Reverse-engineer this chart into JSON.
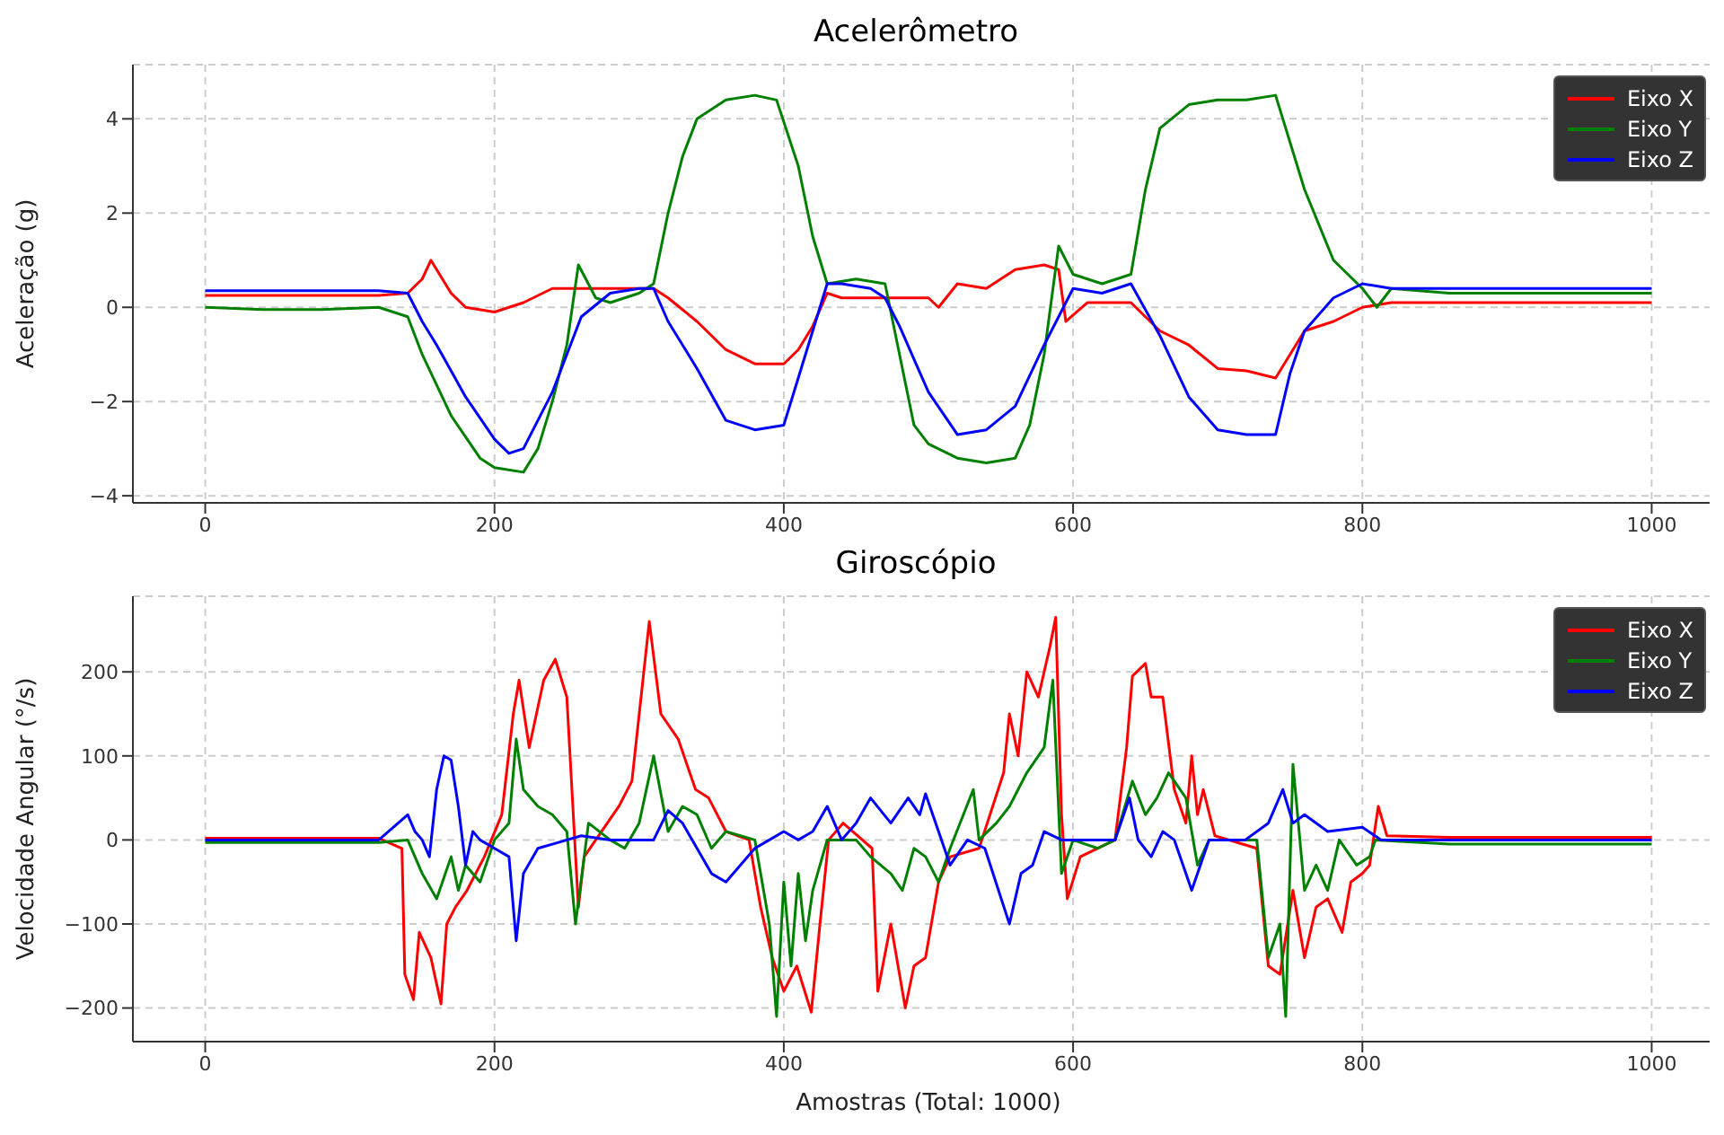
{
  "chart_data": [
    {
      "type": "line",
      "title": "Acelerômetro",
      "ylabel": "Aceleração (g)",
      "xlim": [
        -50,
        1050
      ],
      "xticks": [
        0,
        200,
        400,
        600,
        800,
        1000
      ],
      "ylim": [
        -4.15,
        5.15
      ],
      "yticks": [
        -4,
        -2,
        0,
        2,
        4
      ],
      "grid": true,
      "legend": "top right",
      "series": [
        {
          "name": "Eixo X",
          "color": "#ff0000",
          "x": [
            0,
            40,
            80,
            120,
            140,
            150,
            156,
            170,
            180,
            200,
            220,
            240,
            260,
            280,
            300,
            310,
            320,
            340,
            360,
            380,
            400,
            410,
            420,
            430,
            440,
            460,
            480,
            500,
            507,
            520,
            540,
            560,
            580,
            590,
            595,
            610,
            640,
            660,
            680,
            700,
            720,
            740,
            750,
            760,
            780,
            800,
            820,
            860,
            900,
            950,
            1000
          ],
          "values": [
            0.25,
            0.25,
            0.25,
            0.25,
            0.3,
            0.6,
            1.0,
            0.3,
            0.0,
            -0.1,
            0.1,
            0.4,
            0.4,
            0.4,
            0.4,
            0.4,
            0.2,
            -0.3,
            -0.9,
            -1.2,
            -1.2,
            -0.9,
            -0.4,
            0.3,
            0.2,
            0.2,
            0.2,
            0.2,
            0.0,
            0.5,
            0.4,
            0.8,
            0.9,
            0.8,
            -0.3,
            0.1,
            0.1,
            -0.5,
            -0.8,
            -1.3,
            -1.35,
            -1.5,
            -1.0,
            -0.5,
            -0.3,
            0.0,
            0.1,
            0.1,
            0.1,
            0.1,
            0.1
          ]
        },
        {
          "name": "Eixo Y",
          "color": "#008000",
          "x": [
            0,
            40,
            80,
            120,
            140,
            150,
            170,
            190,
            200,
            220,
            230,
            240,
            250,
            258,
            270,
            280,
            300,
            310,
            320,
            330,
            340,
            360,
            380,
            395,
            410,
            420,
            430,
            450,
            470,
            480,
            490,
            500,
            520,
            540,
            560,
            570,
            580,
            590,
            600,
            620,
            640,
            650,
            660,
            680,
            700,
            720,
            740,
            760,
            780,
            800,
            810,
            820,
            860,
            900,
            950,
            1000
          ],
          "values": [
            0.0,
            -0.05,
            -0.05,
            0.0,
            -0.2,
            -1.0,
            -2.3,
            -3.2,
            -3.4,
            -3.5,
            -3.0,
            -2.0,
            -0.8,
            0.9,
            0.2,
            0.1,
            0.3,
            0.5,
            2.0,
            3.2,
            4.0,
            4.4,
            4.5,
            4.4,
            3.0,
            1.5,
            0.5,
            0.6,
            0.5,
            -1.0,
            -2.5,
            -2.9,
            -3.2,
            -3.3,
            -3.2,
            -2.5,
            -1.0,
            1.3,
            0.7,
            0.5,
            0.7,
            2.5,
            3.8,
            4.3,
            4.4,
            4.4,
            4.5,
            2.5,
            1.0,
            0.4,
            0.0,
            0.4,
            0.3,
            0.3,
            0.3,
            0.3
          ]
        },
        {
          "name": "Eixo Z",
          "color": "#0000ff",
          "x": [
            0,
            40,
            80,
            120,
            140,
            150,
            160,
            180,
            200,
            210,
            220,
            240,
            260,
            280,
            300,
            310,
            320,
            340,
            360,
            380,
            400,
            410,
            420,
            430,
            440,
            460,
            470,
            480,
            500,
            520,
            540,
            560,
            580,
            600,
            620,
            640,
            660,
            680,
            700,
            720,
            740,
            750,
            760,
            780,
            800,
            820,
            860,
            900,
            950,
            1000
          ],
          "values": [
            0.35,
            0.35,
            0.35,
            0.35,
            0.3,
            -0.3,
            -0.8,
            -1.9,
            -2.8,
            -3.1,
            -3.0,
            -1.8,
            -0.2,
            0.3,
            0.4,
            0.4,
            -0.3,
            -1.3,
            -2.4,
            -2.6,
            -2.5,
            -1.5,
            -0.5,
            0.5,
            0.5,
            0.4,
            0.2,
            -0.4,
            -1.8,
            -2.7,
            -2.6,
            -2.1,
            -0.8,
            0.4,
            0.3,
            0.5,
            -0.6,
            -1.9,
            -2.6,
            -2.7,
            -2.7,
            -1.4,
            -0.5,
            0.2,
            0.5,
            0.4,
            0.4,
            0.4,
            0.4,
            0.4
          ]
        }
      ]
    },
    {
      "type": "line",
      "title": "Giroscópio",
      "xlabel": "Amostras (Total: 1000)",
      "ylabel": "Velocidade Angular (°/s)",
      "xlim": [
        -50,
        1050
      ],
      "xticks": [
        0,
        200,
        400,
        600,
        800,
        1000
      ],
      "ylim": [
        -240,
        290
      ],
      "yticks": [
        -200,
        -100,
        0,
        100,
        200
      ],
      "grid": true,
      "legend": "top right",
      "series": [
        {
          "name": "Eixo X",
          "color": "#ff0000",
          "x": [
            0,
            40,
            80,
            120,
            136,
            138,
            144,
            148,
            156,
            163,
            167,
            173,
            181,
            193,
            205,
            213,
            217,
            224,
            234,
            242,
            250,
            258,
            262,
            270,
            286,
            295,
            307,
            315,
            327,
            339,
            348,
            360,
            376,
            384,
            392,
            400,
            409,
            419,
            425,
            431,
            441,
            461,
            465,
            474,
            484,
            490,
            498,
            507,
            515,
            535,
            552,
            556,
            562,
            568,
            576,
            584,
            588,
            592,
            596,
            605,
            629,
            637,
            641,
            650,
            654,
            662,
            670,
            678,
            682,
            686,
            690,
            698,
            727,
            735,
            743,
            752,
            760,
            768,
            776,
            786,
            792,
            800,
            805,
            811,
            817,
            860,
            900,
            950,
            1000
          ],
          "values": [
            2,
            2,
            2,
            2,
            -10,
            -160,
            -190,
            -110,
            -140,
            -195,
            -100,
            -80,
            -60,
            -20,
            30,
            150,
            190,
            110,
            190,
            215,
            170,
            -80,
            -20,
            0,
            40,
            70,
            260,
            150,
            120,
            60,
            50,
            10,
            0,
            -80,
            -140,
            -180,
            -150,
            -205,
            -100,
            0,
            20,
            -10,
            -180,
            -100,
            -200,
            -150,
            -140,
            -50,
            -20,
            -10,
            80,
            150,
            100,
            200,
            170,
            230,
            265,
            30,
            -70,
            -20,
            0,
            110,
            195,
            210,
            170,
            170,
            60,
            20,
            100,
            30,
            60,
            5,
            -10,
            -150,
            -160,
            -60,
            -140,
            -80,
            -70,
            -110,
            -50,
            -40,
            -30,
            40,
            5,
            3,
            3,
            3,
            3
          ]
        },
        {
          "name": "Eixo Y",
          "color": "#008000",
          "x": [
            0,
            40,
            80,
            120,
            140,
            150,
            160,
            170,
            175,
            180,
            190,
            200,
            210,
            215,
            220,
            230,
            240,
            250,
            256,
            265,
            280,
            290,
            300,
            310,
            320,
            330,
            340,
            350,
            360,
            380,
            390,
            395,
            400,
            405,
            410,
            415,
            420,
            430,
            450,
            460,
            474,
            482,
            490,
            498,
            507,
            515,
            531,
            535,
            547,
            556,
            568,
            580,
            586,
            592,
            600,
            617,
            629,
            641,
            650,
            658,
            666,
            678,
            686,
            694,
            727,
            735,
            743,
            747,
            752,
            760,
            768,
            776,
            784,
            796,
            805,
            809,
            860,
            900,
            950,
            1000
          ],
          "values": [
            -3,
            -3,
            -3,
            -3,
            0,
            -40,
            -70,
            -20,
            -60,
            -30,
            -50,
            0,
            20,
            120,
            60,
            40,
            30,
            10,
            -100,
            20,
            0,
            -10,
            20,
            100,
            10,
            40,
            30,
            -10,
            10,
            0,
            -100,
            -210,
            -50,
            -150,
            -40,
            -120,
            -60,
            0,
            0,
            -20,
            -40,
            -60,
            -10,
            -20,
            -50,
            -10,
            60,
            0,
            20,
            40,
            80,
            110,
            190,
            -40,
            0,
            -10,
            0,
            70,
            30,
            50,
            80,
            50,
            -30,
            0,
            0,
            -140,
            -100,
            -210,
            90,
            -60,
            -30,
            -60,
            0,
            -30,
            -20,
            0,
            -5,
            -5,
            -5,
            -5
          ]
        },
        {
          "name": "Eixo Z",
          "color": "#0000ff",
          "x": [
            0,
            40,
            80,
            120,
            140,
            145,
            150,
            155,
            160,
            165,
            170,
            175,
            180,
            185,
            190,
            200,
            210,
            215,
            220,
            230,
            240,
            260,
            280,
            300,
            310,
            320,
            330,
            340,
            350,
            360,
            370,
            380,
            390,
            400,
            410,
            420,
            430,
            440,
            450,
            460,
            474,
            486,
            494,
            498,
            507,
            515,
            527,
            539,
            556,
            564,
            572,
            580,
            592,
            613,
            629,
            639,
            645,
            654,
            662,
            670,
            678,
            682,
            694,
            719,
            735,
            745,
            752,
            760,
            776,
            800,
            813,
            860,
            900,
            950,
            1000
          ],
          "values": [
            0,
            0,
            0,
            0,
            30,
            10,
            0,
            -20,
            60,
            100,
            95,
            40,
            -30,
            10,
            0,
            -10,
            -20,
            -120,
            -40,
            -10,
            -5,
            5,
            0,
            0,
            0,
            35,
            20,
            -10,
            -40,
            -50,
            -30,
            -10,
            0,
            10,
            0,
            10,
            40,
            0,
            20,
            50,
            20,
            50,
            30,
            55,
            10,
            -30,
            0,
            -10,
            -100,
            -40,
            -30,
            10,
            0,
            0,
            0,
            50,
            0,
            -20,
            10,
            0,
            -40,
            -60,
            0,
            0,
            20,
            60,
            20,
            30,
            10,
            15,
            0,
            0,
            0,
            0,
            0
          ]
        }
      ]
    }
  ]
}
